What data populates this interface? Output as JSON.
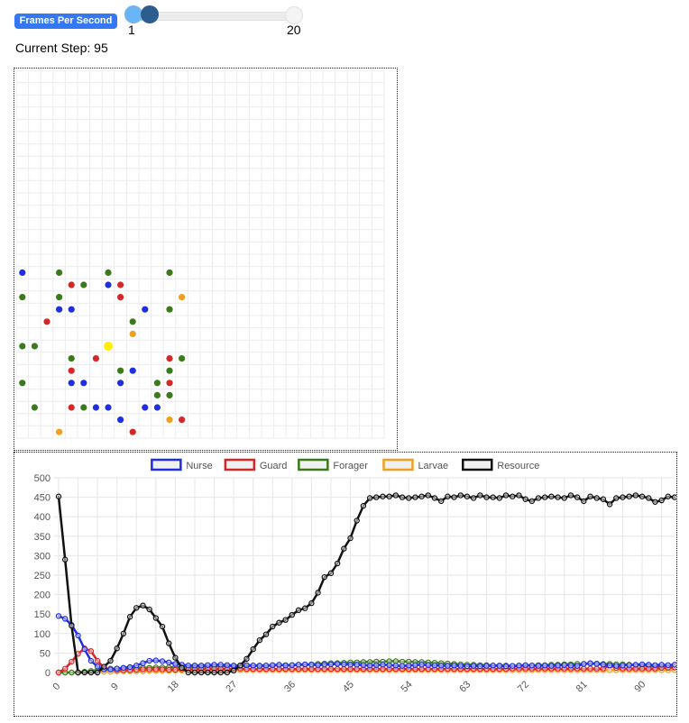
{
  "controls": {
    "fps_button_label": "Frames Per Second",
    "slider_min_label": "1",
    "slider_max_label": "20",
    "slider_min": 1,
    "slider_max": 20,
    "slider_value": 2
  },
  "step_label": "Current Step: 95",
  "colors": {
    "nurse": "#1f2ee0",
    "guard": "#d62728",
    "forager": "#3a7a1a",
    "larvae": "#f0a020",
    "queen": "#ffee00",
    "resource": "#111111"
  },
  "grid": {
    "columns": 30,
    "rows": 30,
    "agents": [
      {
        "type": "nurse",
        "col": 0,
        "row": 16
      },
      {
        "type": "forager",
        "col": 3,
        "row": 16
      },
      {
        "type": "forager",
        "col": 7,
        "row": 16
      },
      {
        "type": "forager",
        "col": 12,
        "row": 16
      },
      {
        "type": "guard",
        "col": 4,
        "row": 17
      },
      {
        "type": "forager",
        "col": 5,
        "row": 17
      },
      {
        "type": "nurse",
        "col": 7,
        "row": 17
      },
      {
        "type": "guard",
        "col": 8,
        "row": 17
      },
      {
        "type": "forager",
        "col": 0,
        "row": 18
      },
      {
        "type": "forager",
        "col": 3,
        "row": 18
      },
      {
        "type": "guard",
        "col": 8,
        "row": 18
      },
      {
        "type": "larvae",
        "col": 13,
        "row": 18
      },
      {
        "type": "nurse",
        "col": 3,
        "row": 19
      },
      {
        "type": "nurse",
        "col": 4,
        "row": 19
      },
      {
        "type": "nurse",
        "col": 10,
        "row": 19
      },
      {
        "type": "forager",
        "col": 12,
        "row": 19
      },
      {
        "type": "guard",
        "col": 2,
        "row": 20
      },
      {
        "type": "forager",
        "col": 9,
        "row": 20
      },
      {
        "type": "larvae",
        "col": 9,
        "row": 21
      },
      {
        "type": "forager",
        "col": 0,
        "row": 22
      },
      {
        "type": "forager",
        "col": 1,
        "row": 22
      },
      {
        "type": "queen",
        "col": 7,
        "row": 22
      },
      {
        "type": "forager",
        "col": 4,
        "row": 23
      },
      {
        "type": "guard",
        "col": 6,
        "row": 23
      },
      {
        "type": "guard",
        "col": 12,
        "row": 23
      },
      {
        "type": "forager",
        "col": 13,
        "row": 23
      },
      {
        "type": "guard",
        "col": 4,
        "row": 24
      },
      {
        "type": "forager",
        "col": 8,
        "row": 24
      },
      {
        "type": "nurse",
        "col": 9,
        "row": 24
      },
      {
        "type": "forager",
        "col": 12,
        "row": 24
      },
      {
        "type": "forager",
        "col": 0,
        "row": 25
      },
      {
        "type": "nurse",
        "col": 4,
        "row": 25
      },
      {
        "type": "nurse",
        "col": 5,
        "row": 25
      },
      {
        "type": "nurse",
        "col": 8,
        "row": 25
      },
      {
        "type": "forager",
        "col": 11,
        "row": 25
      },
      {
        "type": "guard",
        "col": 12,
        "row": 25
      },
      {
        "type": "forager",
        "col": 11,
        "row": 26
      },
      {
        "type": "forager",
        "col": 12,
        "row": 26
      },
      {
        "type": "forager",
        "col": 1,
        "row": 27
      },
      {
        "type": "guard",
        "col": 4,
        "row": 27
      },
      {
        "type": "forager",
        "col": 5,
        "row": 27
      },
      {
        "type": "nurse",
        "col": 6,
        "row": 27
      },
      {
        "type": "nurse",
        "col": 7,
        "row": 27
      },
      {
        "type": "nurse",
        "col": 10,
        "row": 27
      },
      {
        "type": "nurse",
        "col": 11,
        "row": 27
      },
      {
        "type": "nurse",
        "col": 8,
        "row": 28
      },
      {
        "type": "larvae",
        "col": 12,
        "row": 28
      },
      {
        "type": "guard",
        "col": 13,
        "row": 28
      },
      {
        "type": "larvae",
        "col": 3,
        "row": 29
      },
      {
        "type": "guard",
        "col": 9,
        "row": 29
      }
    ]
  },
  "chart_data": {
    "type": "line",
    "legend_position": "top",
    "grid": true,
    "ylim": [
      0,
      500
    ],
    "y_ticks": [
      0,
      50,
      100,
      150,
      200,
      250,
      300,
      350,
      400,
      450,
      500
    ],
    "x_tick_labels": [
      "0",
      "9",
      "18",
      "27",
      "36",
      "45",
      "54",
      "63",
      "72",
      "81",
      "90"
    ],
    "x": [
      0,
      1,
      2,
      3,
      4,
      5,
      6,
      7,
      8,
      9,
      10,
      11,
      12,
      13,
      14,
      15,
      16,
      17,
      18,
      19,
      20,
      21,
      22,
      23,
      24,
      25,
      26,
      27,
      28,
      29,
      30,
      31,
      32,
      33,
      34,
      35,
      36,
      37,
      38,
      39,
      40,
      41,
      42,
      43,
      44,
      45,
      46,
      47,
      48,
      49,
      50,
      51,
      52,
      53,
      54,
      55,
      56,
      57,
      58,
      59,
      60,
      61,
      62,
      63,
      64,
      65,
      66,
      67,
      68,
      69,
      70,
      71,
      72,
      73,
      74,
      75,
      76,
      77,
      78,
      79,
      80,
      81,
      82,
      83,
      84,
      85,
      86,
      87,
      88,
      89,
      90,
      91,
      92,
      93,
      94,
      95
    ],
    "series": [
      {
        "name": "Nurse",
        "color_key": "nurse",
        "values": [
          145,
          138,
          122,
          95,
          60,
          30,
          15,
          8,
          8,
          10,
          12,
          14,
          18,
          24,
          30,
          31,
          29,
          26,
          22,
          20,
          18,
          18,
          18,
          19,
          20,
          20,
          19,
          18,
          18,
          19,
          18,
          17,
          18,
          19,
          20,
          18,
          19,
          20,
          21,
          20,
          19,
          20,
          21,
          22,
          21,
          20,
          20,
          19,
          18,
          19,
          20,
          19,
          18,
          17,
          18,
          19,
          20,
          19,
          18,
          18,
          17,
          18,
          17,
          16,
          17,
          16,
          17,
          18,
          17,
          16,
          17,
          18,
          19,
          18,
          17,
          18,
          17,
          18,
          19,
          18,
          17,
          22,
          24,
          22,
          20,
          18,
          17,
          18,
          19,
          20,
          21,
          20,
          19,
          20,
          19,
          20
        ]
      },
      {
        "name": "Guard",
        "color_key": "guard",
        "values": [
          0,
          10,
          28,
          48,
          62,
          55,
          30,
          12,
          8,
          6,
          6,
          6,
          7,
          8,
          8,
          8,
          8,
          7,
          7,
          8,
          8,
          8,
          9,
          9,
          9,
          9,
          9,
          9,
          10,
          9,
          9,
          9,
          9,
          9,
          9,
          9,
          9,
          9,
          9,
          9,
          9,
          9,
          9,
          9,
          9,
          9,
          9,
          9,
          9,
          9,
          9,
          9,
          9,
          9,
          9,
          9,
          9,
          9,
          9,
          9,
          9,
          9,
          9,
          9,
          9,
          9,
          9,
          9,
          9,
          9,
          10,
          10,
          10,
          10,
          10,
          10,
          10,
          10,
          10,
          10,
          10,
          10,
          10,
          10,
          10,
          18,
          12,
          10,
          10,
          10,
          10,
          10,
          10,
          12,
          12,
          13
        ]
      },
      {
        "name": "Forager",
        "color_key": "forager",
        "values": [
          0,
          0,
          0,
          0,
          2,
          4,
          6,
          8,
          10,
          10,
          11,
          11,
          12,
          12,
          12,
          13,
          13,
          13,
          14,
          14,
          14,
          15,
          15,
          15,
          16,
          16,
          16,
          17,
          17,
          17,
          18,
          18,
          18,
          18,
          19,
          19,
          19,
          20,
          20,
          21,
          22,
          23,
          24,
          24,
          25,
          26,
          26,
          27,
          27,
          28,
          28,
          29,
          29,
          28,
          28,
          27,
          27,
          26,
          25,
          24,
          23,
          22,
          21,
          20,
          20,
          19,
          19,
          18,
          18,
          18,
          17,
          17,
          18,
          18,
          19,
          19,
          20,
          20,
          21,
          21,
          22,
          22,
          23,
          23,
          22,
          22,
          21,
          21,
          20,
          19,
          18,
          17,
          16,
          15,
          14,
          13
        ]
      },
      {
        "name": "Larvae",
        "color_key": "larvae",
        "values": [
          0,
          0,
          0,
          0,
          1,
          1,
          2,
          2,
          2,
          3,
          3,
          3,
          3,
          3,
          4,
          4,
          4,
          4,
          5,
          5,
          5,
          5,
          5,
          6,
          6,
          6,
          6,
          6,
          6,
          6,
          6,
          6,
          6,
          6,
          6,
          6,
          6,
          6,
          6,
          6,
          6,
          6,
          6,
          6,
          6,
          6,
          6,
          6,
          6,
          6,
          6,
          6,
          6,
          6,
          6,
          6,
          6,
          6,
          6,
          6,
          6,
          6,
          6,
          6,
          6,
          6,
          6,
          6,
          6,
          6,
          6,
          6,
          6,
          6,
          6,
          6,
          6,
          6,
          6,
          6,
          6,
          6,
          6,
          6,
          6,
          6,
          6,
          6,
          6,
          6,
          6,
          6,
          6,
          6,
          6,
          6
        ]
      },
      {
        "name": "Resource",
        "color_key": "resource",
        "values": [
          452,
          290,
          120,
          0,
          0,
          0,
          0,
          15,
          30,
          62,
          100,
          143,
          166,
          172,
          162,
          140,
          118,
          75,
          38,
          12,
          0,
          0,
          0,
          0,
          0,
          0,
          0,
          5,
          18,
          35,
          60,
          83,
          98,
          118,
          128,
          135,
          148,
          160,
          165,
          178,
          205,
          245,
          255,
          280,
          318,
          345,
          390,
          428,
          448,
          450,
          452,
          452,
          455,
          450,
          448,
          450,
          452,
          455,
          448,
          440,
          452,
          450,
          455,
          452,
          448,
          455,
          450,
          450,
          448,
          455,
          452,
          455,
          445,
          440,
          448,
          450,
          452,
          450,
          448,
          455,
          450,
          440,
          452,
          448,
          445,
          432,
          448,
          450,
          452,
          455,
          452,
          448,
          438,
          442,
          452,
          450
        ]
      }
    ]
  }
}
